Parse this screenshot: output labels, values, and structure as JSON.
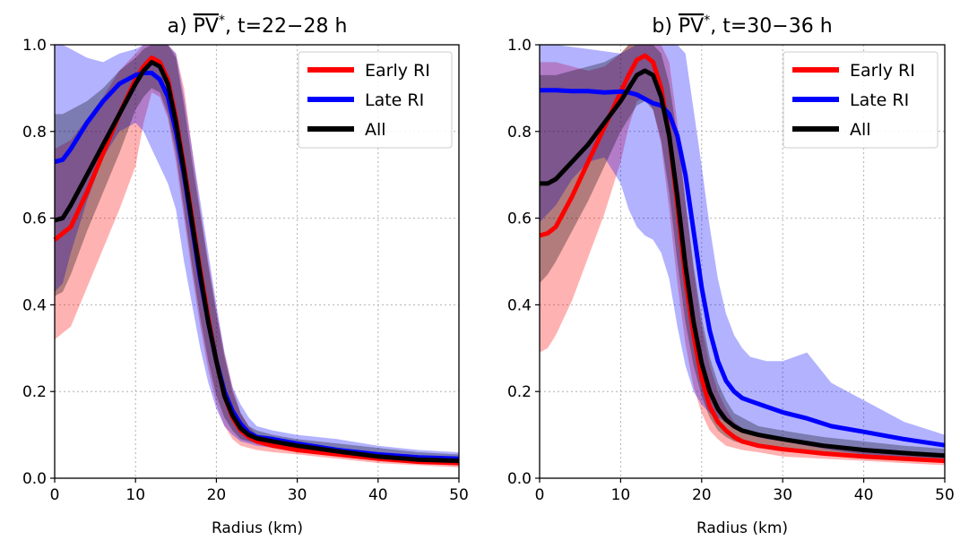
{
  "chart_data": [
    {
      "type": "line",
      "title": {
        "prefix": "a) ",
        "pv": "PV",
        "star": "*",
        "suffix": ", t=22−28 h"
      },
      "xlabel": "Radius (km)",
      "ylabel": "",
      "xlim": [
        0,
        50
      ],
      "ylim": [
        0,
        1.0
      ],
      "xticks": [
        "0",
        "10",
        "20",
        "30",
        "40",
        "50"
      ],
      "yticks": [
        "0.0",
        "0.2",
        "0.4",
        "0.6",
        "0.8",
        "1.0"
      ],
      "grid": true,
      "legend_position": "top-right",
      "series": [
        {
          "name": "Early RI",
          "color": "#ff0000",
          "x": [
            0,
            2,
            4,
            6,
            8,
            10,
            11,
            12,
            13,
            14,
            15,
            16,
            17,
            18,
            19,
            20,
            21,
            22,
            23,
            24,
            25,
            27,
            30,
            35,
            40,
            45,
            50
          ],
          "y": [
            0.55,
            0.58,
            0.66,
            0.75,
            0.84,
            0.92,
            0.95,
            0.97,
            0.96,
            0.92,
            0.83,
            0.72,
            0.6,
            0.48,
            0.37,
            0.27,
            0.19,
            0.14,
            0.11,
            0.095,
            0.085,
            0.075,
            0.065,
            0.055,
            0.045,
            0.038,
            0.035
          ],
          "lower": [
            0.32,
            0.35,
            0.44,
            0.53,
            0.62,
            0.72,
            0.82,
            0.89,
            0.88,
            0.83,
            0.73,
            0.6,
            0.47,
            0.35,
            0.25,
            0.17,
            0.12,
            0.09,
            0.075,
            0.07,
            0.065,
            0.06,
            0.055,
            0.045,
            0.035,
            0.03,
            0.025
          ],
          "upper": [
            0.76,
            0.78,
            0.83,
            0.88,
            0.94,
            0.98,
            1.0,
            1.0,
            1.0,
            1.0,
            0.98,
            0.9,
            0.76,
            0.62,
            0.5,
            0.39,
            0.29,
            0.21,
            0.15,
            0.12,
            0.1,
            0.09,
            0.08,
            0.07,
            0.06,
            0.05,
            0.045
          ]
        },
        {
          "name": "Late RI",
          "color": "#0000ff",
          "x": [
            0,
            1,
            2,
            4,
            6,
            8,
            10,
            11,
            12,
            13,
            14,
            15,
            16,
            17,
            18,
            19,
            20,
            21,
            22,
            23,
            24,
            25,
            27,
            30,
            35,
            40,
            45,
            50
          ],
          "y": [
            0.73,
            0.735,
            0.76,
            0.82,
            0.87,
            0.91,
            0.93,
            0.935,
            0.935,
            0.92,
            0.88,
            0.8,
            0.7,
            0.58,
            0.46,
            0.36,
            0.27,
            0.2,
            0.155,
            0.125,
            0.105,
            0.095,
            0.09,
            0.08,
            0.065,
            0.055,
            0.048,
            0.045
          ],
          "lower": [
            0.43,
            0.45,
            0.52,
            0.64,
            0.74,
            0.8,
            0.82,
            0.8,
            0.76,
            0.72,
            0.68,
            0.62,
            0.5,
            0.4,
            0.3,
            0.22,
            0.16,
            0.12,
            0.1,
            0.085,
            0.08,
            0.075,
            0.07,
            0.065,
            0.055,
            0.045,
            0.04,
            0.035
          ],
          "upper": [
            1.0,
            1.0,
            0.99,
            0.97,
            0.96,
            0.98,
            0.99,
            1.0,
            1.0,
            1.0,
            1.0,
            0.98,
            0.88,
            0.76,
            0.64,
            0.52,
            0.4,
            0.29,
            0.21,
            0.17,
            0.14,
            0.12,
            0.11,
            0.1,
            0.09,
            0.075,
            0.065,
            0.06
          ]
        },
        {
          "name": "All",
          "color": "#000000",
          "x": [
            0,
            1,
            2,
            4,
            6,
            8,
            10,
            11,
            12,
            13,
            14,
            15,
            16,
            17,
            18,
            19,
            20,
            21,
            22,
            23,
            24,
            25,
            27,
            30,
            35,
            40,
            45,
            50
          ],
          "y": [
            0.595,
            0.6,
            0.63,
            0.7,
            0.77,
            0.84,
            0.91,
            0.94,
            0.96,
            0.95,
            0.91,
            0.82,
            0.71,
            0.59,
            0.47,
            0.36,
            0.27,
            0.19,
            0.145,
            0.115,
            0.1,
            0.092,
            0.085,
            0.075,
            0.062,
            0.05,
            0.043,
            0.04
          ],
          "lower": [
            0.42,
            0.43,
            0.47,
            0.57,
            0.66,
            0.75,
            0.85,
            0.88,
            0.9,
            0.89,
            0.84,
            0.75,
            0.62,
            0.49,
            0.37,
            0.27,
            0.19,
            0.14,
            0.11,
            0.09,
            0.085,
            0.08,
            0.075,
            0.065,
            0.055,
            0.045,
            0.04,
            0.035
          ],
          "upper": [
            0.84,
            0.84,
            0.85,
            0.87,
            0.9,
            0.94,
            0.97,
            0.99,
            1.0,
            1.0,
            1.0,
            0.97,
            0.86,
            0.73,
            0.61,
            0.49,
            0.38,
            0.28,
            0.2,
            0.15,
            0.12,
            0.11,
            0.1,
            0.09,
            0.08,
            0.07,
            0.06,
            0.055
          ]
        }
      ]
    },
    {
      "type": "line",
      "title": {
        "prefix": "b) ",
        "pv": "PV",
        "star": "*",
        "suffix": ", t=30−36 h"
      },
      "xlabel": "Radius (km)",
      "ylabel": "",
      "xlim": [
        0,
        50
      ],
      "ylim": [
        0,
        1.0
      ],
      "xticks": [
        "0",
        "10",
        "20",
        "30",
        "40",
        "50"
      ],
      "yticks": [
        "0.0",
        "0.2",
        "0.4",
        "0.6",
        "0.8",
        "1.0"
      ],
      "grid": true,
      "legend_position": "top-right",
      "series": [
        {
          "name": "Early RI",
          "color": "#ff0000",
          "x": [
            0,
            1,
            2,
            4,
            6,
            8,
            10,
            11,
            12,
            13,
            14,
            15,
            16,
            17,
            18,
            19,
            20,
            21,
            22,
            23,
            24,
            25,
            27,
            30,
            35,
            40,
            45,
            50
          ],
          "y": [
            0.56,
            0.565,
            0.58,
            0.65,
            0.73,
            0.81,
            0.89,
            0.93,
            0.965,
            0.975,
            0.96,
            0.9,
            0.79,
            0.63,
            0.46,
            0.33,
            0.23,
            0.165,
            0.13,
            0.11,
            0.095,
            0.085,
            0.075,
            0.067,
            0.057,
            0.05,
            0.045,
            0.04
          ],
          "lower": [
            0.29,
            0.3,
            0.33,
            0.41,
            0.51,
            0.61,
            0.73,
            0.81,
            0.87,
            0.88,
            0.85,
            0.77,
            0.62,
            0.45,
            0.31,
            0.21,
            0.15,
            0.11,
            0.09,
            0.075,
            0.07,
            0.065,
            0.06,
            0.05,
            0.045,
            0.04,
            0.035,
            0.03
          ],
          "upper": [
            0.96,
            0.96,
            0.96,
            0.95,
            0.94,
            0.95,
            0.98,
            1.0,
            1.0,
            1.0,
            1.0,
            1.0,
            0.96,
            0.82,
            0.64,
            0.48,
            0.35,
            0.26,
            0.2,
            0.16,
            0.13,
            0.115,
            0.1,
            0.09,
            0.08,
            0.07,
            0.06,
            0.055
          ]
        },
        {
          "name": "Late RI",
          "color": "#0000ff",
          "x": [
            0,
            2,
            4,
            6,
            8,
            10,
            11,
            12,
            13,
            14,
            15,
            16,
            17,
            18,
            19,
            20,
            21,
            22,
            23,
            24,
            25,
            26,
            28,
            30,
            33,
            36,
            40,
            45,
            50
          ],
          "y": [
            0.895,
            0.895,
            0.893,
            0.893,
            0.89,
            0.892,
            0.89,
            0.885,
            0.875,
            0.865,
            0.86,
            0.84,
            0.79,
            0.7,
            0.57,
            0.44,
            0.34,
            0.27,
            0.225,
            0.2,
            0.185,
            0.178,
            0.165,
            0.152,
            0.138,
            0.12,
            0.107,
            0.09,
            0.076
          ],
          "lower": [
            0.59,
            0.63,
            0.69,
            0.73,
            0.74,
            0.68,
            0.62,
            0.58,
            0.56,
            0.55,
            0.52,
            0.46,
            0.35,
            0.26,
            0.2,
            0.17,
            0.15,
            0.14,
            0.13,
            0.12,
            0.11,
            0.1,
            0.09,
            0.085,
            0.075,
            0.065,
            0.055,
            0.05,
            0.045
          ],
          "upper": [
            1.0,
            1.0,
            0.995,
            0.99,
            0.985,
            0.98,
            0.99,
            1.0,
            1.0,
            1.0,
            1.0,
            1.0,
            1.0,
            0.98,
            0.85,
            0.72,
            0.58,
            0.46,
            0.38,
            0.33,
            0.3,
            0.28,
            0.27,
            0.27,
            0.29,
            0.22,
            0.18,
            0.13,
            0.1
          ]
        },
        {
          "name": "All",
          "color": "#000000",
          "x": [
            0,
            1,
            2,
            4,
            6,
            8,
            10,
            11,
            12,
            13,
            14,
            15,
            16,
            17,
            18,
            19,
            20,
            21,
            22,
            23,
            24,
            25,
            27,
            30,
            35,
            40,
            45,
            50
          ],
          "y": [
            0.68,
            0.68,
            0.69,
            0.73,
            0.77,
            0.82,
            0.87,
            0.9,
            0.93,
            0.94,
            0.93,
            0.88,
            0.79,
            0.65,
            0.49,
            0.36,
            0.265,
            0.2,
            0.16,
            0.135,
            0.12,
            0.11,
            0.1,
            0.09,
            0.075,
            0.065,
            0.058,
            0.052
          ],
          "lower": [
            0.45,
            0.47,
            0.5,
            0.57,
            0.64,
            0.72,
            0.8,
            0.83,
            0.86,
            0.87,
            0.85,
            0.78,
            0.66,
            0.5,
            0.36,
            0.26,
            0.19,
            0.14,
            0.11,
            0.095,
            0.085,
            0.08,
            0.07,
            0.065,
            0.055,
            0.05,
            0.045,
            0.04
          ],
          "upper": [
            0.93,
            0.93,
            0.93,
            0.94,
            0.95,
            0.96,
            0.98,
            1.0,
            1.0,
            1.0,
            1.0,
            0.98,
            0.91,
            0.79,
            0.64,
            0.49,
            0.37,
            0.28,
            0.22,
            0.18,
            0.15,
            0.14,
            0.12,
            0.11,
            0.095,
            0.085,
            0.075,
            0.068
          ]
        }
      ]
    }
  ]
}
